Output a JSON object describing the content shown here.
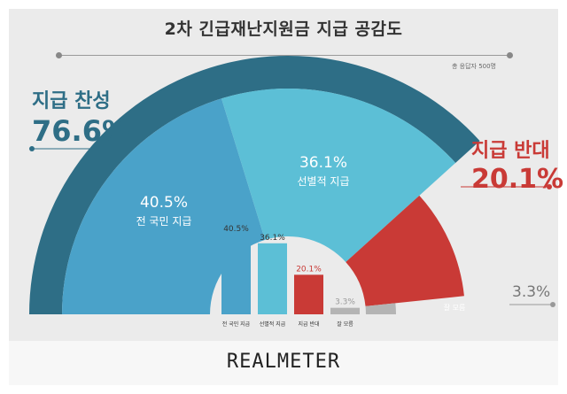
{
  "chart_data": {
    "type": "pie",
    "title": "2차 긴급재난지원금 지급 공감도",
    "note": "총 응답자 500명",
    "summary": [
      {
        "name": "지급 찬성",
        "value": 76.6,
        "value_label": "76.6%",
        "color": "#2e6e86"
      },
      {
        "name": "지급 반대",
        "value": 20.1,
        "value_label": "20.1%",
        "color": "#c93a36"
      },
      {
        "name": "잘 모름",
        "value": 3.3,
        "value_label": "3.3%",
        "color": "#b4b4b4"
      }
    ],
    "slices": [
      {
        "name": "전 국민 지급",
        "value": 40.5,
        "value_label": "40.5%",
        "color": "#4aa2c9"
      },
      {
        "name": "선별적 지급",
        "value": 36.1,
        "value_label": "36.1%",
        "color": "#5cbfd6"
      },
      {
        "name": "지급 반대",
        "value": 20.1,
        "value_label": "20.1%",
        "color": "#c93a36"
      },
      {
        "name": "잘 모름",
        "value": 3.3,
        "value_label": "3.3%",
        "color": "#b4b4b4"
      }
    ],
    "inset_bar": {
      "type": "bar",
      "categories": [
        "전 국민 지급",
        "선별적 지급",
        "지급 반대",
        "잘 모름"
      ],
      "values": [
        40.5,
        36.1,
        20.1,
        3.3
      ],
      "value_labels": [
        "40.5%",
        "36.1%",
        "20.1%",
        "3.3%"
      ]
    }
  },
  "brand": "REALMETER"
}
